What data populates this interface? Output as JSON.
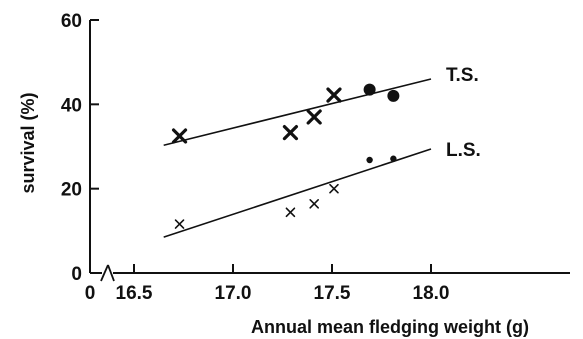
{
  "chart_data": {
    "type": "scatter",
    "title": "",
    "xlabel": "Annual mean fledging weight (g)",
    "ylabel": "survival (%)",
    "x_axis_break": true,
    "xlim": [
      16.5,
      18.75
    ],
    "ylim": [
      0,
      60
    ],
    "x_ticks": [
      {
        "value": 0,
        "label": "0",
        "at_origin": true
      },
      {
        "value": 16.5,
        "label": "16.5"
      },
      {
        "value": 17.0,
        "label": "17.0"
      },
      {
        "value": 17.5,
        "label": "17.5"
      },
      {
        "value": 18.0,
        "label": "18.0"
      }
    ],
    "y_ticks": [
      {
        "value": 0,
        "label": "0"
      },
      {
        "value": 20,
        "label": "20"
      },
      {
        "value": 40,
        "label": "40"
      },
      {
        "value": 60,
        "label": "60"
      }
    ],
    "grid": false,
    "colors": {
      "ink": "#111111",
      "background": "#ffffff"
    },
    "series": [
      {
        "name": "T.S.",
        "marker_size": "large",
        "points": [
          {
            "x": 16.73,
            "y": 32.5,
            "marker": "cross"
          },
          {
            "x": 17.29,
            "y": 33.3,
            "marker": "cross"
          },
          {
            "x": 17.41,
            "y": 37.0,
            "marker": "cross"
          },
          {
            "x": 17.51,
            "y": 42.2,
            "marker": "cross"
          },
          {
            "x": 17.69,
            "y": 43.5,
            "marker": "dot"
          },
          {
            "x": 17.81,
            "y": 42.0,
            "marker": "dot"
          }
        ],
        "fit_line": {
          "x": [
            16.65,
            18.0
          ],
          "y": [
            30.3,
            46.0
          ]
        }
      },
      {
        "name": "L.S.",
        "marker_size": "small",
        "points": [
          {
            "x": 16.73,
            "y": 11.6,
            "marker": "cross"
          },
          {
            "x": 17.29,
            "y": 14.4,
            "marker": "cross"
          },
          {
            "x": 17.41,
            "y": 16.4,
            "marker": "cross"
          },
          {
            "x": 17.51,
            "y": 20.0,
            "marker": "cross"
          },
          {
            "x": 17.69,
            "y": 26.8,
            "marker": "dot"
          },
          {
            "x": 17.81,
            "y": 27.1,
            "marker": "dot"
          }
        ],
        "fit_line": {
          "x": [
            16.65,
            18.0
          ],
          "y": [
            8.5,
            29.4
          ]
        }
      }
    ]
  }
}
